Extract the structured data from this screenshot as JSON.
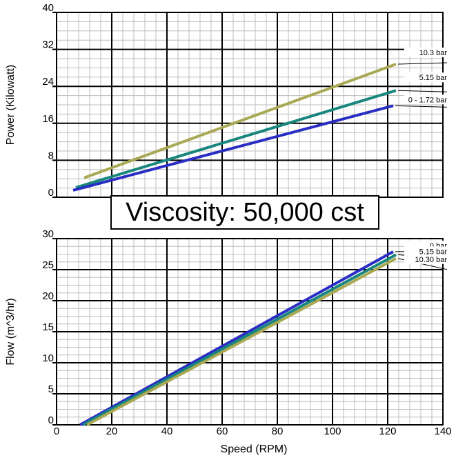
{
  "banner": "Viscosity: 50,000 cst",
  "colors": {
    "gold": "#A9A853",
    "teal": "#17877E",
    "blue": "#2A2DC4",
    "grid_minor": "#bdbdbd",
    "grid_major": "#000000"
  },
  "chart_data": [
    {
      "type": "line",
      "title": "",
      "xlabel": "",
      "ylabel": "Power (Kilowatt)",
      "xlim": [
        0,
        140
      ],
      "ylim": [
        0,
        40
      ],
      "x_ticks": [],
      "y_ticks": [
        "0",
        "8",
        "16",
        "24",
        "32",
        "40"
      ],
      "grid": true,
      "series": [
        {
          "name": "10.3  bar",
          "color": "gold",
          "x": [
            10,
            123
          ],
          "y": [
            4.2,
            28.8
          ]
        },
        {
          "name": "5.15 bar",
          "color": "teal",
          "x": [
            7,
            123
          ],
          "y": [
            2.1,
            23.1
          ]
        },
        {
          "name": "0 - 1.72 bar",
          "color": "blue",
          "x": [
            6,
            122
          ],
          "y": [
            1.5,
            19.8
          ]
        }
      ]
    },
    {
      "type": "line",
      "title": "",
      "xlabel": "Speed (RPM)",
      "ylabel": "Flow (m^3/hr)",
      "xlim": [
        0,
        140
      ],
      "ylim": [
        0,
        30
      ],
      "x_ticks": [
        "0",
        "20",
        "40",
        "60",
        "80",
        "100",
        "120",
        "140"
      ],
      "y_ticks": [
        "0",
        "5",
        "10",
        "15",
        "20",
        "25",
        "30"
      ],
      "grid": true,
      "series": [
        {
          "name": "0 bar",
          "color": "blue",
          "x": [
            8.5,
            122
          ],
          "y": [
            0,
            27.9
          ]
        },
        {
          "name": "5.15 bar",
          "color": "teal",
          "x": [
            9.5,
            123
          ],
          "y": [
            0,
            27.4
          ]
        },
        {
          "name": "10.30 bar",
          "color": "gold",
          "x": [
            11,
            123
          ],
          "y": [
            0,
            26.8
          ]
        }
      ]
    }
  ]
}
